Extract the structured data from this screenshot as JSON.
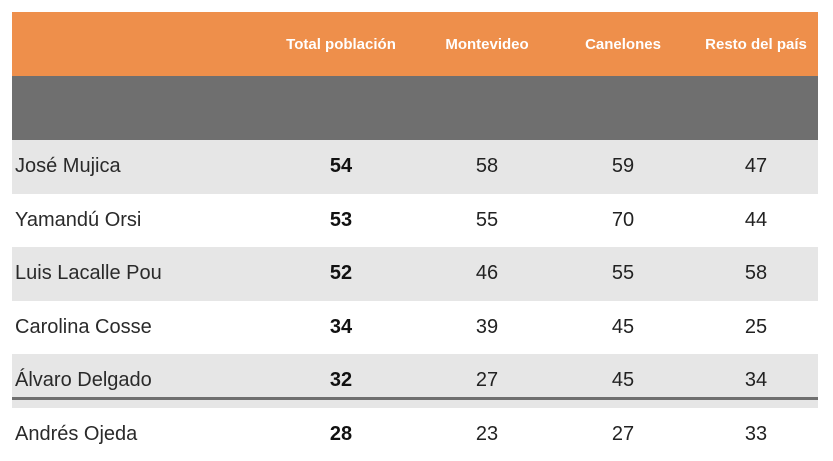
{
  "chart_data": {
    "type": "table",
    "columns": [
      "",
      "Total población",
      "Montevideo",
      "Canelones",
      "Resto del país"
    ],
    "rows": [
      {
        "name": "José Mujica",
        "values": [
          "54",
          "58",
          "59",
          "47"
        ]
      },
      {
        "name": "Yamandú Orsi",
        "values": [
          "53",
          "55",
          "70",
          "44"
        ]
      },
      {
        "name": "Luis Lacalle Pou",
        "values": [
          "52",
          "46",
          "55",
          "58"
        ]
      },
      {
        "name": "Carolina Cosse",
        "values": [
          "34",
          "39",
          "45",
          "25"
        ]
      },
      {
        "name": "Álvaro Delgado",
        "values": [
          "32",
          "27",
          "45",
          "34"
        ]
      },
      {
        "name": "Andrés Ojeda",
        "values": [
          "28",
          "23",
          "27",
          "33"
        ]
      }
    ],
    "colors": {
      "header_bg": "#ee8f4b",
      "header_text": "#ffffff",
      "band": "#e6e6e6",
      "rule": "#6f6f6f"
    }
  }
}
